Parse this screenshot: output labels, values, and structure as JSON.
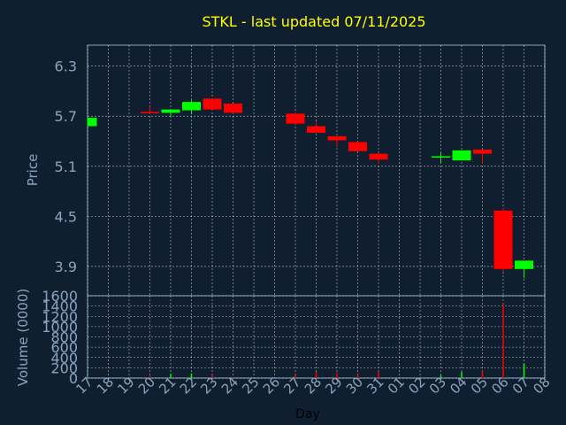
{
  "chart_data": {
    "type": "candlestick",
    "title": "STKL - last updated 07/11/2025",
    "xlabel": "Day",
    "colors": {
      "background": "#0f1f30",
      "axis_text": "#8aa4c0",
      "title": "#ffff00",
      "up": "#00ff00",
      "down": "#ff0000",
      "grid": "#ffffff"
    },
    "x_ticks": [
      "17",
      "18",
      "19",
      "20",
      "21",
      "22",
      "23",
      "24",
      "25",
      "26",
      "27",
      "28",
      "29",
      "30",
      "31",
      "01",
      "02",
      "03",
      "04",
      "05",
      "06",
      "07",
      "08"
    ],
    "price_panel": {
      "ylabel": "Price",
      "ylim": [
        3.55,
        6.55
      ],
      "y_ticks": [
        "6.3",
        "5.7",
        "5.1",
        "4.5",
        "3.9"
      ],
      "y_tick_values": [
        6.3,
        5.7,
        5.1,
        4.5,
        3.9
      ]
    },
    "volume_panel": {
      "ylabel": "Volume (0000)",
      "ylim": [
        0,
        1600
      ],
      "y_ticks": [
        "1600",
        "1400",
        "1200",
        "1000",
        "800",
        "600",
        "400",
        "200",
        "0"
      ],
      "y_tick_values": [
        1600,
        1400,
        1200,
        1000,
        800,
        600,
        400,
        200,
        0
      ]
    },
    "candles": [
      {
        "day": "17",
        "open": 5.58,
        "high": 5.69,
        "low": 5.58,
        "close": 5.68
      },
      {
        "day": "20",
        "open": 5.75,
        "high": 5.82,
        "low": 5.72,
        "close": 5.74
      },
      {
        "day": "21",
        "open": 5.74,
        "high": 5.78,
        "low": 5.69,
        "close": 5.78
      },
      {
        "day": "22",
        "open": 5.77,
        "high": 5.89,
        "low": 5.72,
        "close": 5.87
      },
      {
        "day": "23",
        "open": 5.91,
        "high": 5.91,
        "low": 5.77,
        "close": 5.78
      },
      {
        "day": "24",
        "open": 5.85,
        "high": 5.85,
        "low": 5.73,
        "close": 5.74
      },
      {
        "day": "27",
        "open": 5.73,
        "high": 5.75,
        "low": 5.6,
        "close": 5.61
      },
      {
        "day": "28",
        "open": 5.58,
        "high": 5.63,
        "low": 5.5,
        "close": 5.5
      },
      {
        "day": "29",
        "open": 5.46,
        "high": 5.46,
        "low": 5.33,
        "close": 5.41
      },
      {
        "day": "30",
        "open": 5.39,
        "high": 5.39,
        "low": 5.28,
        "close": 5.28
      },
      {
        "day": "31",
        "open": 5.25,
        "high": 5.26,
        "low": 5.13,
        "close": 5.18
      },
      {
        "day": "03",
        "open": 5.21,
        "high": 5.26,
        "low": 5.13,
        "close": 5.22
      },
      {
        "day": "04",
        "open": 5.17,
        "high": 5.29,
        "low": 5.17,
        "close": 5.29
      },
      {
        "day": "05",
        "open": 5.3,
        "high": 5.3,
        "low": 5.13,
        "close": 5.25
      },
      {
        "day": "06",
        "open": 4.57,
        "high": 4.6,
        "low": 3.84,
        "close": 3.87
      },
      {
        "day": "07",
        "open": 3.87,
        "high": 3.97,
        "low": 3.76,
        "close": 3.97
      }
    ],
    "volumes": [
      {
        "day": "17",
        "value": 10,
        "dir": "up"
      },
      {
        "day": "20",
        "value": 40,
        "dir": "down"
      },
      {
        "day": "21",
        "value": 80,
        "dir": "up"
      },
      {
        "day": "22",
        "value": 90,
        "dir": "up"
      },
      {
        "day": "23",
        "value": 60,
        "dir": "down"
      },
      {
        "day": "24",
        "value": 20,
        "dir": "down"
      },
      {
        "day": "27",
        "value": 60,
        "dir": "down"
      },
      {
        "day": "28",
        "value": 120,
        "dir": "down"
      },
      {
        "day": "29",
        "value": 100,
        "dir": "down"
      },
      {
        "day": "30",
        "value": 70,
        "dir": "down"
      },
      {
        "day": "31",
        "value": 120,
        "dir": "down"
      },
      {
        "day": "03",
        "value": 50,
        "dir": "up"
      },
      {
        "day": "04",
        "value": 120,
        "dir": "up"
      },
      {
        "day": "05",
        "value": 140,
        "dir": "down"
      },
      {
        "day": "06",
        "value": 1440,
        "dir": "down"
      },
      {
        "day": "07",
        "value": 280,
        "dir": "up"
      }
    ]
  }
}
